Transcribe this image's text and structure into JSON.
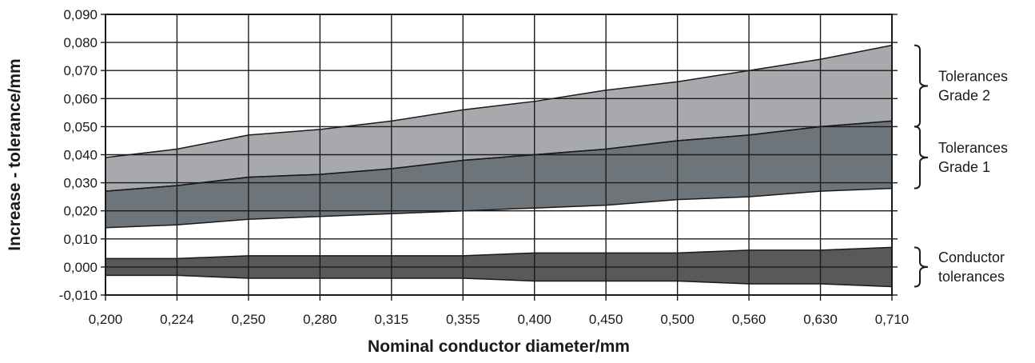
{
  "chart_data": {
    "type": "area",
    "title": "",
    "xlabel": "Nominal conductor diameter/mm",
    "ylabel": "Increase - tolerance/mm",
    "categories": [
      "0,200",
      "0,224",
      "0,250",
      "0,280",
      "0,315",
      "0,355",
      "0,400",
      "0,450",
      "0,500",
      "0,560",
      "0,630",
      "0,710"
    ],
    "ylim": [
      -0.01,
      0.09
    ],
    "yticks": [
      -0.01,
      0.0,
      0.01,
      0.02,
      0.03,
      0.04,
      0.05,
      0.06,
      0.07,
      0.08,
      0.09
    ],
    "ytick_labels": [
      "-0,010",
      "0,000",
      "0,010",
      "0,020",
      "0,030",
      "0,040",
      "0,050",
      "0,060",
      "0,070",
      "0,080",
      "0,090"
    ],
    "grid": true,
    "bands": [
      {
        "label_lines": [
          "Tolerances",
          "Grade 2"
        ],
        "color": "#a7a9ac",
        "lower": [
          0.027,
          0.029,
          0.032,
          0.033,
          0.035,
          0.038,
          0.04,
          0.042,
          0.045,
          0.047,
          0.05,
          0.052
        ],
        "upper": [
          0.039,
          0.042,
          0.047,
          0.049,
          0.052,
          0.056,
          0.059,
          0.063,
          0.066,
          0.07,
          0.074,
          0.079
        ]
      },
      {
        "label_lines": [
          "Tolerances",
          "Grade 1"
        ],
        "color": "#6d747a",
        "lower": [
          0.014,
          0.015,
          0.017,
          0.018,
          0.019,
          0.02,
          0.021,
          0.022,
          0.024,
          0.025,
          0.027,
          0.028
        ],
        "upper": [
          0.027,
          0.029,
          0.032,
          0.033,
          0.035,
          0.038,
          0.04,
          0.042,
          0.045,
          0.047,
          0.05,
          0.052
        ]
      },
      {
        "label_lines": [
          "Conductor",
          "tolerances"
        ],
        "color": "#58595b",
        "lower": [
          -0.003,
          -0.003,
          -0.004,
          -0.004,
          -0.004,
          -0.004,
          -0.005,
          -0.005,
          -0.005,
          -0.006,
          -0.006,
          -0.007
        ],
        "upper": [
          0.003,
          0.003,
          0.004,
          0.004,
          0.004,
          0.004,
          0.005,
          0.005,
          0.005,
          0.006,
          0.006,
          0.007
        ]
      }
    ],
    "brackets": [
      {
        "label_index": 0,
        "range": [
          0.05,
          0.079
        ]
      },
      {
        "label_index": 1,
        "range": [
          0.028,
          0.05
        ]
      },
      {
        "label_index": 2,
        "range": [
          -0.007,
          0.007
        ]
      }
    ]
  }
}
